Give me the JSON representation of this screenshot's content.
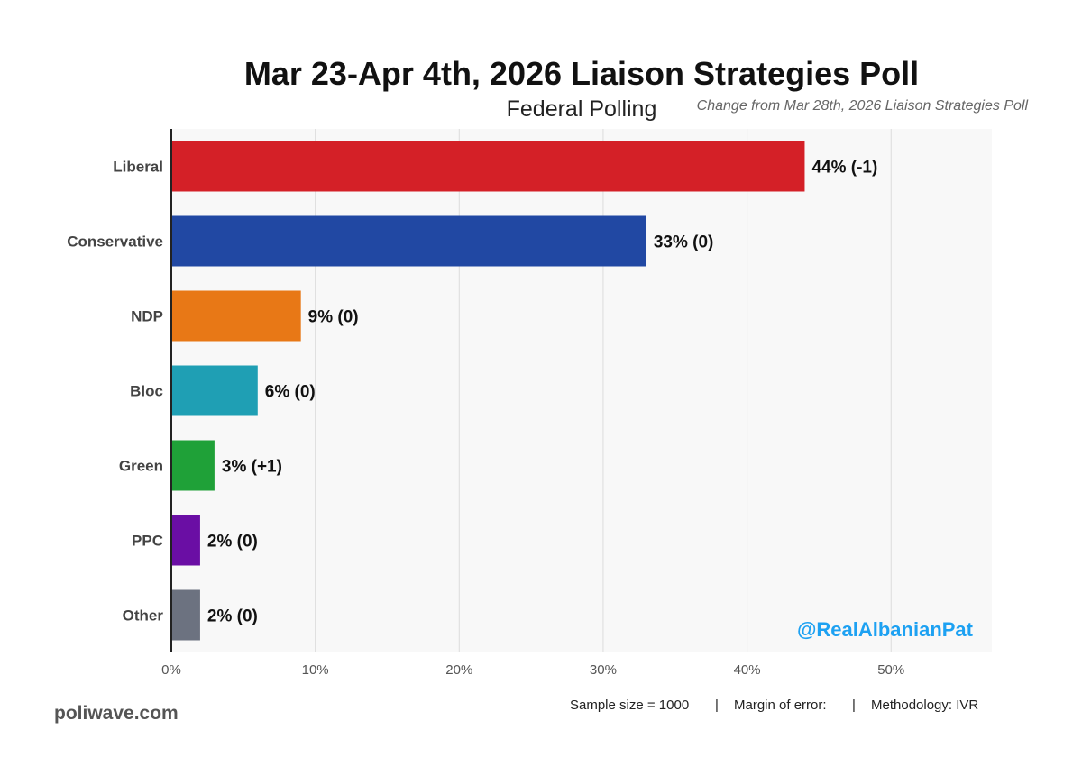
{
  "chart_data": {
    "type": "bar",
    "orientation": "horizontal",
    "title": "Mar 23-Apr 4th, 2026 Liaison Strategies Poll",
    "subtitle": "Federal Polling",
    "change_note": "Change from Mar 28th, 2026 Liaison Strategies Poll",
    "categories": [
      "Liberal",
      "Conservative",
      "NDP",
      "Bloc",
      "Green",
      "PPC",
      "Other"
    ],
    "values": [
      44,
      33,
      9,
      6,
      3,
      2,
      2
    ],
    "value_labels": [
      "44% (-1)",
      "33% (0)",
      "9% (0)",
      "6% (0)",
      "3% (+1)",
      "2% (0)",
      "2% (0)"
    ],
    "colors": [
      "#d42027",
      "#2148a3",
      "#e87816",
      "#1f9fb4",
      "#1fa138",
      "#6a0ea4",
      "#6c7280"
    ],
    "xlim": [
      0,
      57
    ],
    "xticks": [
      0,
      10,
      20,
      30,
      40,
      50
    ],
    "xtick_labels": [
      "0%",
      "10%",
      "20%",
      "30%",
      "40%",
      "50%"
    ],
    "grid": true,
    "xlabel": "",
    "ylabel": ""
  },
  "watermark": {
    "text": "@RealAlbanianPat",
    "color": "#1da1f2"
  },
  "source": "poliwave.com",
  "footer": {
    "sample_size": "Sample size = 1000",
    "margin_of_error": "Margin of error:",
    "methodology": "Methodology: IVR",
    "separator": "|"
  },
  "colors": {
    "plot_background": "#f8f8f8",
    "grid": "#dcdcdc",
    "axis": "#222222"
  }
}
